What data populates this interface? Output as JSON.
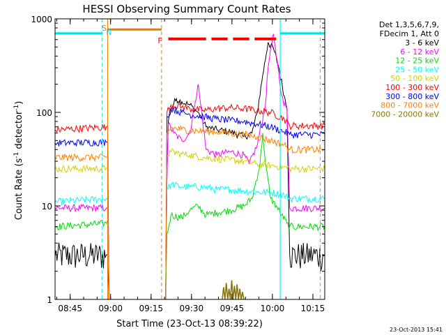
{
  "chart_data": {
    "type": "line",
    "title": "HESSI Observing Summary Count Rates",
    "xlabel": "Start Time (23-Oct-13 08:39:22)",
    "ylabel_base": "Count Rate (s",
    "ylabel_sup1": "-1",
    "ylabel_mid": " detector",
    "ylabel_sup2": "-1",
    "ylabel_end": ")",
    "x_range_minutes": [
      0,
      100
    ],
    "x_tick_labels": [
      "08:45",
      "09:00",
      "09:15",
      "09:30",
      "09:45",
      "10:00",
      "10:15"
    ],
    "y_scale": "log",
    "ylim": [
      1,
      1000
    ],
    "y_tick_labels": [
      "1",
      "10",
      "100",
      "1000"
    ],
    "stamp": "23-Oct-2013 15:41",
    "legend_header": [
      "Det 1,3,5,6,7,9,",
      "FDecim 1, Att 0"
    ],
    "flags": [
      {
        "label": "S",
        "color": "#f07800"
      },
      {
        "label": "N",
        "color": "#00e6e6"
      },
      {
        "label": "F",
        "color": "#f00000"
      }
    ],
    "series": [
      {
        "name": "3 - 6 keV",
        "color": "#000000",
        "points": [
          [
            0,
            3
          ],
          [
            19,
            3
          ],
          [
            19.5,
            3
          ],
          [
            20,
            1
          ],
          [
            41,
            1
          ],
          [
            41.5,
            20
          ],
          [
            42,
            80
          ],
          [
            43,
            110
          ],
          [
            45,
            140
          ],
          [
            47,
            130
          ],
          [
            50,
            120
          ],
          [
            53,
            100
          ],
          [
            56,
            70
          ],
          [
            60,
            65
          ],
          [
            65,
            62
          ],
          [
            70,
            55
          ],
          [
            73,
            60
          ],
          [
            75,
            100
          ],
          [
            77,
            250
          ],
          [
            79,
            560
          ],
          [
            81,
            480
          ],
          [
            83,
            300
          ],
          [
            85,
            150
          ],
          [
            86,
            110
          ],
          [
            87,
            3
          ],
          [
            100,
            3
          ]
        ]
      },
      {
        "name": "6 - 12 keV",
        "color": "#ff00ff",
        "points": [
          [
            0,
            9.5
          ],
          [
            19,
            9.5
          ],
          [
            19.5,
            9.5
          ],
          [
            20,
            1
          ],
          [
            41,
            1
          ],
          [
            41.5,
            20
          ],
          [
            42,
            75
          ],
          [
            44,
            60
          ],
          [
            47,
            50
          ],
          [
            50,
            60
          ],
          [
            52,
            130
          ],
          [
            53,
            200
          ],
          [
            54,
            120
          ],
          [
            56,
            40
          ],
          [
            60,
            35
          ],
          [
            65,
            38
          ],
          [
            70,
            35
          ],
          [
            72,
            28
          ],
          [
            75,
            45
          ],
          [
            78,
            120
          ],
          [
            79,
            300
          ],
          [
            80,
            500
          ],
          [
            81,
            680
          ],
          [
            82,
            400
          ],
          [
            84,
            150
          ],
          [
            86,
            110
          ],
          [
            87,
            9.5
          ],
          [
            100,
            9.5
          ]
        ]
      },
      {
        "name": "12 - 25 keV",
        "color": "#00dd00",
        "points": [
          [
            0,
            6
          ],
          [
            19,
            6.5
          ],
          [
            19.5,
            7
          ],
          [
            20,
            1
          ],
          [
            41,
            1
          ],
          [
            41.5,
            5
          ],
          [
            43,
            8
          ],
          [
            47,
            7.5
          ],
          [
            50,
            9
          ],
          [
            53,
            10
          ],
          [
            56,
            8
          ],
          [
            60,
            8.5
          ],
          [
            65,
            9
          ],
          [
            70,
            10
          ],
          [
            73,
            12
          ],
          [
            76,
            28
          ],
          [
            77,
            60
          ],
          [
            78,
            28
          ],
          [
            80,
            12
          ],
          [
            82,
            10
          ],
          [
            84,
            8
          ],
          [
            86,
            6.5
          ],
          [
            87,
            6
          ],
          [
            100,
            6
          ]
        ]
      },
      {
        "name": "25 - 50 keV",
        "color": "#00ffff",
        "points": [
          [
            0,
            11
          ],
          [
            19,
            12
          ],
          [
            19.5,
            12
          ],
          [
            20,
            1
          ],
          [
            41,
            1
          ],
          [
            41.5,
            15
          ],
          [
            43,
            17
          ],
          [
            47,
            16
          ],
          [
            50,
            16
          ],
          [
            55,
            16
          ],
          [
            60,
            15
          ],
          [
            65,
            15
          ],
          [
            70,
            14.5
          ],
          [
            75,
            14
          ],
          [
            80,
            14
          ],
          [
            85,
            13
          ],
          [
            87,
            12
          ],
          [
            100,
            12
          ]
        ]
      },
      {
        "name": "50 - 100 keV",
        "color": "#d2d200",
        "points": [
          [
            0,
            25
          ],
          [
            19,
            25
          ],
          [
            19.5,
            26
          ],
          [
            20,
            1
          ],
          [
            41,
            1
          ],
          [
            41.5,
            35
          ],
          [
            43,
            38
          ],
          [
            47,
            36
          ],
          [
            50,
            35
          ],
          [
            55,
            33
          ],
          [
            60,
            32
          ],
          [
            65,
            31
          ],
          [
            70,
            30
          ],
          [
            75,
            28
          ],
          [
            80,
            27
          ],
          [
            85,
            26
          ],
          [
            87,
            25
          ],
          [
            100,
            25
          ]
        ]
      },
      {
        "name": "100 - 300 keV",
        "color": "#ff0000",
        "points": [
          [
            0,
            65
          ],
          [
            19,
            70
          ],
          [
            19.5,
            72
          ],
          [
            20,
            1
          ],
          [
            41,
            1
          ],
          [
            41.5,
            100
          ],
          [
            43,
            120
          ],
          [
            47,
            115
          ],
          [
            50,
            110
          ],
          [
            55,
            105
          ],
          [
            60,
            110
          ],
          [
            65,
            112
          ],
          [
            70,
            110
          ],
          [
            75,
            105
          ],
          [
            80,
            100
          ],
          [
            85,
            85
          ],
          [
            87,
            72
          ],
          [
            100,
            72
          ]
        ]
      },
      {
        "name": "300 - 800 keV",
        "color": "#0000ff",
        "points": [
          [
            0,
            47
          ],
          [
            19,
            48
          ],
          [
            19.5,
            48
          ],
          [
            20,
            1
          ],
          [
            41,
            1
          ],
          [
            41.5,
            90
          ],
          [
            43,
            110
          ],
          [
            47,
            100
          ],
          [
            50,
            95
          ],
          [
            55,
            90
          ],
          [
            60,
            85
          ],
          [
            65,
            82
          ],
          [
            70,
            80
          ],
          [
            75,
            75
          ],
          [
            80,
            70
          ],
          [
            85,
            62
          ],
          [
            87,
            58
          ],
          [
            100,
            58
          ]
        ]
      },
      {
        "name": "800 - 7000 keV",
        "color": "#ff8000",
        "points": [
          [
            0,
            33
          ],
          [
            19,
            33
          ],
          [
            19.5,
            34
          ],
          [
            20,
            1
          ],
          [
            41,
            1
          ],
          [
            41.5,
            60
          ],
          [
            43,
            68
          ],
          [
            47,
            66
          ],
          [
            50,
            64
          ],
          [
            55,
            63
          ],
          [
            60,
            62
          ],
          [
            65,
            60
          ],
          [
            70,
            58
          ],
          [
            75,
            55
          ],
          [
            80,
            50
          ],
          [
            85,
            45
          ],
          [
            87,
            40
          ],
          [
            100,
            40
          ]
        ]
      },
      {
        "name": "7000 - 20000 keV",
        "color": "#8c7800",
        "points": [
          [
            62,
            1
          ],
          [
            62.5,
            1.35
          ],
          [
            63,
            1
          ],
          [
            63.5,
            1.5
          ],
          [
            64,
            1
          ],
          [
            64.5,
            1.3
          ],
          [
            65,
            1
          ],
          [
            65.5,
            1.6
          ],
          [
            66,
            1
          ],
          [
            66.5,
            1.4
          ],
          [
            67,
            1
          ],
          [
            67.5,
            1.45
          ],
          [
            68,
            1
          ],
          [
            68.5,
            1.3
          ],
          [
            69,
            1
          ],
          [
            69.5,
            1.2
          ],
          [
            70,
            1
          ]
        ]
      }
    ]
  }
}
